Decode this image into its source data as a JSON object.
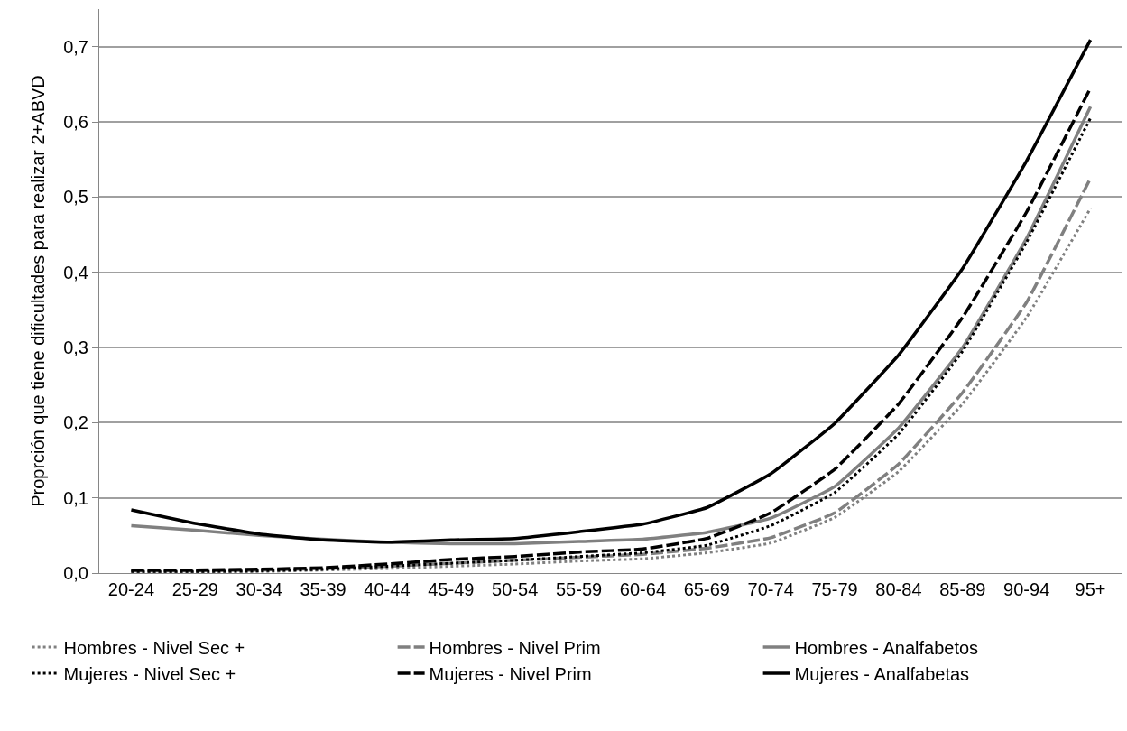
{
  "chart_data": {
    "type": "line",
    "ylabel": "Proprción que tiene dificultades para realizar 2+ABVD",
    "categories": [
      "20-24",
      "25-29",
      "30-34",
      "35-39",
      "40-44",
      "45-49",
      "50-54",
      "55-59",
      "60-64",
      "65-69",
      "70-74",
      "75-79",
      "80-84",
      "85-89",
      "90-94",
      "95+"
    ],
    "ylim": [
      0,
      0.75
    ],
    "yticks": [
      {
        "value": 0,
        "label": "0,0"
      },
      {
        "value": 0.1,
        "label": "0,1"
      },
      {
        "value": 0.2,
        "label": "0,2"
      },
      {
        "value": 0.3,
        "label": "0,3"
      },
      {
        "value": 0.4,
        "label": "0,4"
      },
      {
        "value": 0.5,
        "label": "0,5"
      },
      {
        "value": 0.6,
        "label": "0,6"
      },
      {
        "value": 0.7,
        "label": "0,7"
      }
    ],
    "grid": "y",
    "legend": "bottom",
    "marker": "none",
    "series": [
      {
        "name": "Hombres - Nivel Sec +",
        "color": "#808080",
        "line_style": "dotted",
        "values": [
          0.001,
          0.001,
          0.002,
          0.004,
          0.006,
          0.009,
          0.012,
          0.016,
          0.019,
          0.027,
          0.04,
          0.074,
          0.135,
          0.225,
          0.34,
          0.485
        ]
      },
      {
        "name": "Hombres - Nivel Prim",
        "color": "#808080",
        "line_style": "dashed",
        "values": [
          0.003,
          0.003,
          0.004,
          0.006,
          0.009,
          0.013,
          0.017,
          0.021,
          0.025,
          0.033,
          0.047,
          0.08,
          0.145,
          0.24,
          0.36,
          0.525
        ]
      },
      {
        "name": "Hombres - Analfabetos",
        "color": "#808080",
        "line_style": "solid",
        "values": [
          0.063,
          0.057,
          0.05,
          0.045,
          0.041,
          0.039,
          0.039,
          0.042,
          0.045,
          0.054,
          0.073,
          0.115,
          0.193,
          0.3,
          0.445,
          0.62
        ]
      },
      {
        "name": "Mujeres - Nivel Sec +",
        "color": "#000000",
        "line_style": "dotted",
        "values": [
          0.002,
          0.002,
          0.003,
          0.005,
          0.009,
          0.013,
          0.017,
          0.022,
          0.027,
          0.037,
          0.063,
          0.107,
          0.185,
          0.295,
          0.44,
          0.605
        ]
      },
      {
        "name": "Mujeres - Nivel Prim",
        "color": "#000000",
        "line_style": "dashed",
        "values": [
          0.004,
          0.004,
          0.005,
          0.007,
          0.012,
          0.018,
          0.022,
          0.028,
          0.032,
          0.046,
          0.08,
          0.138,
          0.225,
          0.34,
          0.48,
          0.645
        ]
      },
      {
        "name": "Mujeres - Analfabetas",
        "color": "#000000",
        "line_style": "solid",
        "values": [
          0.084,
          0.066,
          0.052,
          0.044,
          0.041,
          0.044,
          0.046,
          0.055,
          0.065,
          0.087,
          0.132,
          0.199,
          0.29,
          0.405,
          0.548,
          0.709
        ]
      }
    ]
  }
}
